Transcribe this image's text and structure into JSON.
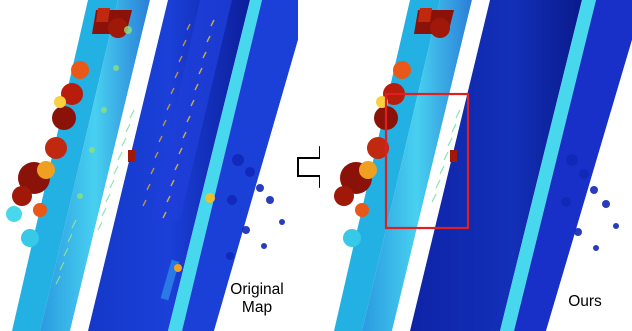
{
  "captions": {
    "left_line1": "Original",
    "left_line2": "Map",
    "right": "Ours"
  },
  "icons": {
    "transition": "right-arrow-icon"
  },
  "colors": {
    "ground": "#1e3ad0",
    "ground_deep": "#0a1a8c",
    "median_cyan": "#38c8e8",
    "median_green": "#8ee07a",
    "tall_red": "#a01808",
    "highlight_box": "#e02020"
  }
}
